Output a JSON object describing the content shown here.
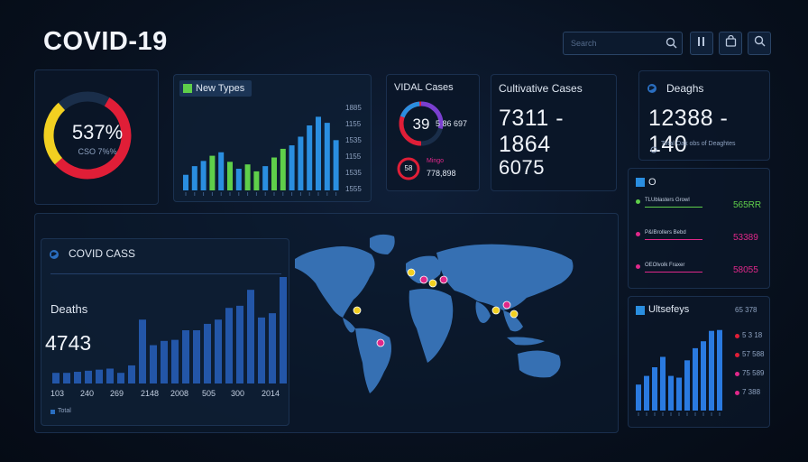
{
  "header": {
    "title": "COVID-19",
    "search_placeholder": "Search"
  },
  "gauge": {
    "value": "537%",
    "sublabel": "CSO 7%%",
    "segments": [
      {
        "color": "#e01e37",
        "fraction": 0.55
      },
      {
        "color": "#f2d021",
        "fraction": 0.25
      },
      {
        "color": "#1a2e4a",
        "fraction": 0.2
      }
    ]
  },
  "new_types": {
    "title": "New Types",
    "ticks": [
      "1885",
      "1155",
      "1535",
      "1155",
      "1535",
      "1555"
    ],
    "chart_data": {
      "type": "bar",
      "values": [
        18,
        28,
        34,
        40,
        44,
        33,
        25,
        30,
        22,
        28,
        38,
        48,
        52,
        62,
        75,
        85,
        78,
        58
      ],
      "colors": [
        "#2a8ee0",
        "#2a8ee0",
        "#2a8ee0",
        "#5fcf4a",
        "#2a8ee0",
        "#5fcf4a",
        "#2a8ee0",
        "#5fcf4a",
        "#5fcf4a",
        "#2a8ee0",
        "#5fcf4a",
        "#5fcf4a",
        "#2a8ee0",
        "#2a8ee0",
        "#2a8ee0",
        "#2a8ee0",
        "#2a8ee0",
        "#2a8ee0"
      ]
    }
  },
  "total_cases": {
    "title": "VIDAL Cases",
    "ring_value": "39",
    "ring_side": "5 86 697",
    "small_ring_value": "58",
    "small_label": "Mingo",
    "small_value": "778,898"
  },
  "cumulative": {
    "title": "Cultivative Cases",
    "value1": "7311 - 1864",
    "value2": "6075"
  },
  "deaths_card": {
    "title": "Deaghs",
    "value": "12388 - 140",
    "footnote": "Total Oak obs of Deaghtes"
  },
  "side_list": {
    "title": "O",
    "rows": [
      {
        "label": "TLUblasters Growl",
        "value": "565RR",
        "color": "#5fcf4a"
      },
      {
        "label": "P&IBrollers Bebd",
        "value": "53389",
        "color": "#e0288a"
      },
      {
        "label": "OEOlvolk Fraxer",
        "value": "58055",
        "color": "#e0288a"
      }
    ]
  },
  "covid_cases": {
    "title": "COVID CASS",
    "deaths_label": "Deaths",
    "deaths_value": "4743",
    "x_ticks": [
      "103",
      "240",
      "269",
      "2148",
      "2008",
      "505",
      "300",
      "2014"
    ],
    "legend": "Total",
    "chart_data": {
      "type": "bar",
      "values": [
        10,
        10,
        11,
        12,
        13,
        14,
        10,
        17,
        60,
        36,
        40,
        41,
        50,
        50,
        56,
        60,
        71,
        73,
        88,
        62,
        66,
        100
      ],
      "ylim": [
        0,
        100
      ]
    }
  },
  "map": {
    "markers": [
      {
        "color": "#f2d021"
      },
      {
        "color": "#e0288a"
      },
      {
        "color": "#f2d021"
      },
      {
        "color": "#e0288a"
      },
      {
        "color": "#f2d021"
      },
      {
        "color": "#e0288a"
      },
      {
        "color": "#f2d021"
      },
      {
        "color": "#f2d021"
      },
      {
        "color": "#e0288a"
      }
    ]
  },
  "ultrafeys": {
    "title": "Ultsefeys",
    "top_value": "65 378",
    "rows": [
      {
        "label": "5 3 18",
        "color": "#e01e37"
      },
      {
        "label": "57 588",
        "color": "#e01e37"
      },
      {
        "label": "75 589",
        "color": "#e0288a"
      },
      {
        "label": "7 388",
        "color": "#e0288a"
      }
    ],
    "chart_data": {
      "type": "bar",
      "values": [
        30,
        40,
        50,
        62,
        40,
        38,
        58,
        72,
        80,
        92,
        93
      ],
      "ylim": [
        0,
        100
      ]
    }
  }
}
